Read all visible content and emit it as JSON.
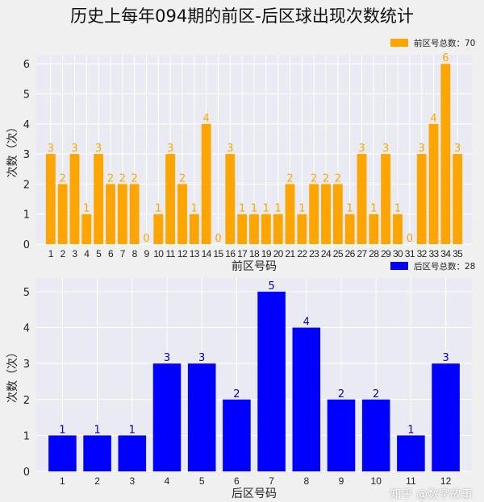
{
  "title": "历史上每年094期的前区-后区球出现次数统计",
  "watermark": "知乎 @数字故事",
  "chart_data": [
    {
      "type": "bar",
      "xlabel": "前区号码",
      "ylabel": "次数（次）",
      "legend": "前区号总数：70",
      "legend_position": "top-right",
      "color": "#ffa500",
      "grid": true,
      "categories": [
        "1",
        "2",
        "3",
        "4",
        "5",
        "6",
        "7",
        "8",
        "9",
        "10",
        "11",
        "12",
        "13",
        "14",
        "15",
        "16",
        "17",
        "18",
        "19",
        "20",
        "21",
        "22",
        "23",
        "24",
        "25",
        "26",
        "27",
        "28",
        "29",
        "30",
        "31",
        "32",
        "33",
        "34",
        "35"
      ],
      "values": [
        3,
        2,
        3,
        1,
        3,
        2,
        2,
        2,
        0,
        1,
        3,
        2,
        1,
        4,
        0,
        3,
        1,
        1,
        1,
        1,
        2,
        1,
        2,
        2,
        2,
        1,
        3,
        1,
        3,
        1,
        0,
        3,
        4,
        6,
        3
      ],
      "yticks": [
        0,
        1,
        2,
        3,
        4,
        5,
        6
      ],
      "ylim": [
        0,
        6.3
      ]
    },
    {
      "type": "bar",
      "xlabel": "后区号码",
      "ylabel": "次数（次）",
      "legend": "后区号总数：28",
      "legend_position": "top-right",
      "color": "#0000ff",
      "grid": true,
      "categories": [
        "1",
        "2",
        "3",
        "4",
        "5",
        "6",
        "7",
        "8",
        "9",
        "10",
        "11",
        "12"
      ],
      "values": [
        1,
        1,
        1,
        3,
        3,
        2,
        5,
        4,
        2,
        2,
        1,
        3
      ],
      "yticks": [
        0,
        1,
        2,
        3,
        4,
        5
      ],
      "ylim": [
        0,
        5.38
      ]
    }
  ]
}
